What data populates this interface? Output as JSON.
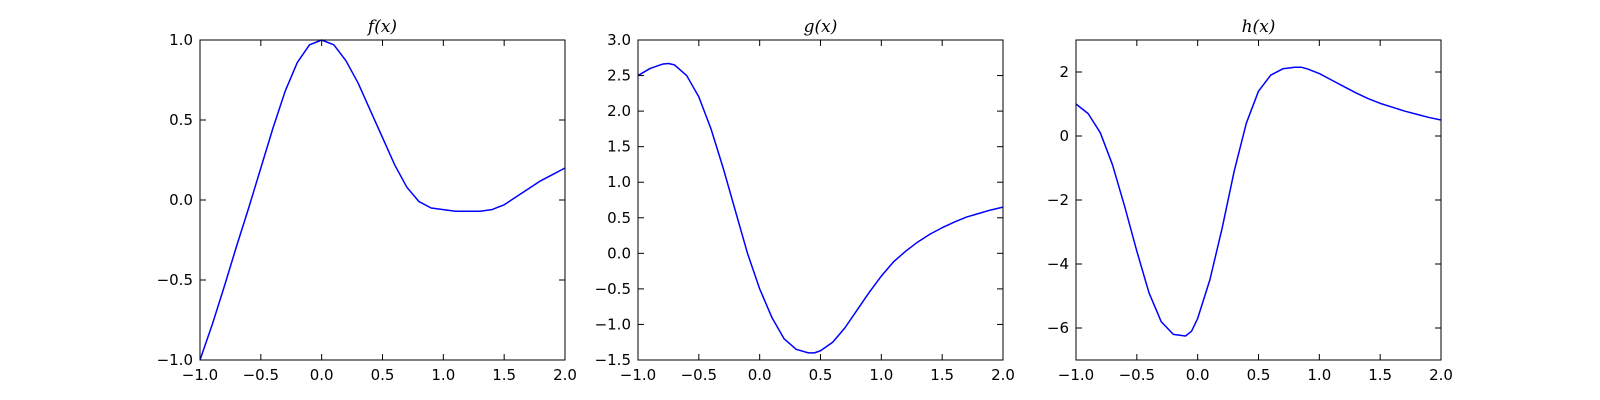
{
  "figure": {
    "background": "#ffffff",
    "line_color": "#0000ff"
  },
  "chart_data": [
    {
      "type": "line",
      "title": "f(x)",
      "xlabel": "",
      "ylabel": "",
      "xlim": [
        -1.0,
        2.0
      ],
      "ylim": [
        -1.0,
        1.0
      ],
      "x_ticks": [
        -1.0,
        -0.5,
        0.0,
        0.5,
        1.0,
        1.5,
        2.0
      ],
      "x_tick_labels": [
        "−1.0",
        "−0.5",
        "0.0",
        "0.5",
        "1.0",
        "1.5",
        "2.0"
      ],
      "y_ticks": [
        -1.0,
        -0.5,
        0.0,
        0.5,
        1.0
      ],
      "y_tick_labels": [
        "−1.0",
        "−0.5",
        "0.0",
        "0.5",
        "1.0"
      ],
      "grid": false,
      "series": [
        {
          "color": "#0000ff",
          "x": [
            -1.0,
            -0.9,
            -0.8,
            -0.7,
            -0.6,
            -0.5,
            -0.4,
            -0.3,
            -0.2,
            -0.1,
            0.0,
            0.1,
            0.2,
            0.3,
            0.4,
            0.5,
            0.6,
            0.7,
            0.8,
            0.9,
            1.0,
            1.1,
            1.2,
            1.3,
            1.4,
            1.5,
            1.6,
            1.7,
            1.8,
            1.9,
            2.0
          ],
          "y": [
            -1.0,
            -0.78,
            -0.54,
            -0.29,
            -0.05,
            0.2,
            0.45,
            0.68,
            0.86,
            0.97,
            1.0,
            0.97,
            0.87,
            0.73,
            0.56,
            0.39,
            0.22,
            0.08,
            -0.01,
            -0.05,
            -0.06,
            -0.07,
            -0.07,
            -0.07,
            -0.06,
            -0.03,
            0.02,
            0.07,
            0.12,
            0.16,
            0.2
          ]
        }
      ]
    },
    {
      "type": "line",
      "title": "g(x)",
      "xlabel": "",
      "ylabel": "",
      "xlim": [
        -1.0,
        2.0
      ],
      "ylim": [
        -1.5,
        3.0
      ],
      "x_ticks": [
        -1.0,
        -0.5,
        0.0,
        0.5,
        1.0,
        1.5,
        2.0
      ],
      "x_tick_labels": [
        "−1.0",
        "−0.5",
        "0.0",
        "0.5",
        "1.0",
        "1.5",
        "2.0"
      ],
      "y_ticks": [
        -1.5,
        -1.0,
        -0.5,
        0.0,
        0.5,
        1.0,
        1.5,
        2.0,
        2.5,
        3.0
      ],
      "y_tick_labels": [
        "−1.5",
        "−1.0",
        "−0.5",
        "0.0",
        "0.5",
        "1.0",
        "1.5",
        "2.0",
        "2.5",
        "3.0"
      ],
      "grid": false,
      "series": [
        {
          "color": "#0000ff",
          "x": [
            -1.0,
            -0.9,
            -0.8,
            -0.75,
            -0.7,
            -0.6,
            -0.5,
            -0.4,
            -0.3,
            -0.2,
            -0.1,
            0.0,
            0.1,
            0.2,
            0.3,
            0.4,
            0.45,
            0.5,
            0.6,
            0.7,
            0.8,
            0.9,
            1.0,
            1.1,
            1.2,
            1.3,
            1.4,
            1.5,
            1.6,
            1.7,
            1.8,
            1.9,
            2.0
          ],
          "y": [
            2.5,
            2.6,
            2.66,
            2.67,
            2.65,
            2.5,
            2.2,
            1.75,
            1.2,
            0.6,
            0.0,
            -0.5,
            -0.9,
            -1.2,
            -1.35,
            -1.4,
            -1.4,
            -1.37,
            -1.25,
            -1.05,
            -0.8,
            -0.55,
            -0.32,
            -0.12,
            0.03,
            0.16,
            0.27,
            0.36,
            0.44,
            0.51,
            0.56,
            0.61,
            0.65
          ]
        }
      ]
    },
    {
      "type": "line",
      "title": "h(x)",
      "xlabel": "",
      "ylabel": "",
      "xlim": [
        -1.0,
        2.0
      ],
      "ylim": [
        -7.0,
        3.0
      ],
      "x_ticks": [
        -1.0,
        -0.5,
        0.0,
        0.5,
        1.0,
        1.5,
        2.0
      ],
      "x_tick_labels": [
        "−1.0",
        "−0.5",
        "0.0",
        "0.5",
        "1.0",
        "1.5",
        "2.0"
      ],
      "y_ticks": [
        -6,
        -4,
        -2,
        0,
        2
      ],
      "y_tick_labels": [
        "−6",
        "−4",
        "−2",
        "0",
        "2"
      ],
      "grid": false,
      "series": [
        {
          "color": "#0000ff",
          "x": [
            -1.0,
            -0.9,
            -0.8,
            -0.7,
            -0.6,
            -0.5,
            -0.4,
            -0.3,
            -0.2,
            -0.1,
            -0.05,
            0.0,
            0.1,
            0.2,
            0.3,
            0.4,
            0.5,
            0.6,
            0.7,
            0.8,
            0.85,
            0.9,
            1.0,
            1.1,
            1.2,
            1.3,
            1.4,
            1.5,
            1.6,
            1.7,
            1.8,
            1.9,
            2.0
          ],
          "y": [
            1.0,
            0.7,
            0.1,
            -0.9,
            -2.2,
            -3.6,
            -4.9,
            -5.8,
            -6.2,
            -6.25,
            -6.1,
            -5.7,
            -4.5,
            -2.9,
            -1.1,
            0.4,
            1.4,
            1.9,
            2.1,
            2.15,
            2.15,
            2.1,
            1.95,
            1.75,
            1.55,
            1.35,
            1.17,
            1.02,
            0.9,
            0.78,
            0.68,
            0.58,
            0.5
          ]
        }
      ]
    }
  ]
}
